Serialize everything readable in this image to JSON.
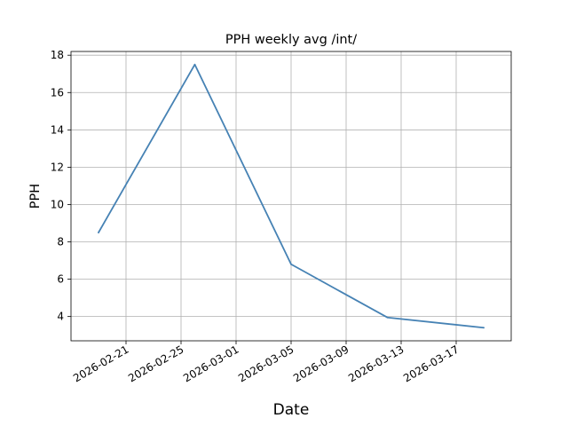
{
  "chart_data": {
    "type": "line",
    "title": "PPH weekly avg /int/",
    "xlabel": "Date",
    "ylabel": "PPH",
    "grid": true,
    "x_tick_labels": [
      "2026-02-21",
      "2026-02-25",
      "2026-03-01",
      "2026-03-05",
      "2026-03-09",
      "2026-03-13",
      "2026-03-17"
    ],
    "y_tick_labels": [
      "4",
      "6",
      "8",
      "10",
      "12",
      "14",
      "16",
      "18"
    ],
    "xlim": [
      "2026-02-17",
      "2026-03-21"
    ],
    "ylim": [
      2.7,
      18.2
    ],
    "series": [
      {
        "color": "#4682b4",
        "points": [
          {
            "x": "2026-02-19",
            "y": 8.5
          },
          {
            "x": "2026-02-26",
            "y": 17.5
          },
          {
            "x": "2026-03-05",
            "y": 6.8
          },
          {
            "x": "2026-03-12",
            "y": 3.95
          },
          {
            "x": "2026-03-19",
            "y": 3.4
          }
        ]
      }
    ]
  }
}
